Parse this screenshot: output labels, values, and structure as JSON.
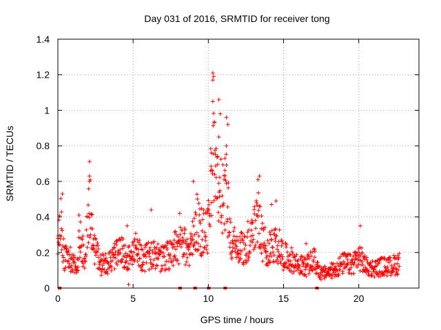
{
  "chart_data": {
    "type": "scatter",
    "title": "Day 031 of 2016, SRMTID for receiver tong",
    "xlabel": "GPS time / hours",
    "ylabel": "SRMTID / TECUs",
    "xlim": [
      0,
      24
    ],
    "ylim": [
      0,
      1.4
    ],
    "xticks": [
      0,
      5,
      10,
      15,
      20
    ],
    "xtick_labels": [
      "0",
      "5",
      "10",
      "15",
      "20"
    ],
    "yticks": [
      0,
      0.2,
      0.4,
      0.6,
      0.8,
      1.0,
      1.2,
      1.4
    ],
    "ytick_labels": [
      "0",
      "0.2",
      "0.4",
      "0.6",
      "0.8",
      "1",
      "1.2",
      "1.4"
    ],
    "grid": true,
    "marker": "plus",
    "color": "#ff0000",
    "series_name": "SRMTID",
    "data_gap_markers_x": [
      0.1,
      8.1,
      9.1,
      10.0,
      11.1,
      17.2
    ],
    "profile": [
      {
        "x": 0.0,
        "y": 0.28
      },
      {
        "x": 0.2,
        "y": 0.4
      },
      {
        "x": 0.4,
        "y": 0.17
      },
      {
        "x": 0.7,
        "y": 0.18
      },
      {
        "x": 1.0,
        "y": 0.14
      },
      {
        "x": 1.3,
        "y": 0.13
      },
      {
        "x": 1.5,
        "y": 0.3
      },
      {
        "x": 1.8,
        "y": 0.13
      },
      {
        "x": 2.1,
        "y": 0.5
      },
      {
        "x": 2.4,
        "y": 0.25
      },
      {
        "x": 2.8,
        "y": 0.13
      },
      {
        "x": 3.3,
        "y": 0.14
      },
      {
        "x": 3.8,
        "y": 0.18
      },
      {
        "x": 4.3,
        "y": 0.2
      },
      {
        "x": 4.7,
        "y": 0.16
      },
      {
        "x": 5.2,
        "y": 0.22
      },
      {
        "x": 5.7,
        "y": 0.16
      },
      {
        "x": 6.3,
        "y": 0.2
      },
      {
        "x": 6.8,
        "y": 0.16
      },
      {
        "x": 7.3,
        "y": 0.18
      },
      {
        "x": 7.8,
        "y": 0.22
      },
      {
        "x": 8.3,
        "y": 0.25
      },
      {
        "x": 8.8,
        "y": 0.2
      },
      {
        "x": 9.2,
        "y": 0.38
      },
      {
        "x": 9.6,
        "y": 0.3
      },
      {
        "x": 10.0,
        "y": 0.35
      },
      {
        "x": 10.3,
        "y": 0.75
      },
      {
        "x": 10.6,
        "y": 0.55
      },
      {
        "x": 10.9,
        "y": 0.5
      },
      {
        "x": 11.2,
        "y": 0.55
      },
      {
        "x": 11.6,
        "y": 0.25
      },
      {
        "x": 12.0,
        "y": 0.22
      },
      {
        "x": 12.5,
        "y": 0.25
      },
      {
        "x": 13.0,
        "y": 0.3
      },
      {
        "x": 13.3,
        "y": 0.45
      },
      {
        "x": 13.6,
        "y": 0.25
      },
      {
        "x": 14.1,
        "y": 0.22
      },
      {
        "x": 14.6,
        "y": 0.25
      },
      {
        "x": 15.0,
        "y": 0.18
      },
      {
        "x": 15.5,
        "y": 0.16
      },
      {
        "x": 16.0,
        "y": 0.13
      },
      {
        "x": 16.5,
        "y": 0.12
      },
      {
        "x": 17.0,
        "y": 0.16
      },
      {
        "x": 17.5,
        "y": 0.08
      },
      {
        "x": 18.0,
        "y": 0.09
      },
      {
        "x": 18.5,
        "y": 0.11
      },
      {
        "x": 19.0,
        "y": 0.14
      },
      {
        "x": 19.5,
        "y": 0.13
      },
      {
        "x": 20.0,
        "y": 0.18
      },
      {
        "x": 20.5,
        "y": 0.12
      },
      {
        "x": 21.0,
        "y": 0.11
      },
      {
        "x": 21.5,
        "y": 0.12
      },
      {
        "x": 22.0,
        "y": 0.12
      },
      {
        "x": 22.7,
        "y": 0.14
      }
    ],
    "outliers": [
      {
        "x": 10.3,
        "y": 1.21
      },
      {
        "x": 10.35,
        "y": 1.19
      },
      {
        "x": 10.3,
        "y": 1.17
      },
      {
        "x": 10.3,
        "y": 1.05
      },
      {
        "x": 10.7,
        "y": 1.06
      },
      {
        "x": 10.8,
        "y": 0.98
      },
      {
        "x": 10.4,
        "y": 0.93
      },
      {
        "x": 11.2,
        "y": 0.96
      },
      {
        "x": 11.3,
        "y": 0.92
      },
      {
        "x": 10.7,
        "y": 0.85
      },
      {
        "x": 11.2,
        "y": 0.8
      },
      {
        "x": 10.2,
        "y": 0.76
      },
      {
        "x": 11.1,
        "y": 0.73
      },
      {
        "x": 2.1,
        "y": 0.63
      },
      {
        "x": 2.1,
        "y": 0.6
      },
      {
        "x": 13.4,
        "y": 0.63
      },
      {
        "x": 13.3,
        "y": 0.61
      },
      {
        "x": 9.0,
        "y": 0.6
      },
      {
        "x": 0.3,
        "y": 0.53
      },
      {
        "x": 14.5,
        "y": 0.49
      },
      {
        "x": 14.2,
        "y": 0.47
      },
      {
        "x": 1.4,
        "y": 0.41
      },
      {
        "x": 8.1,
        "y": 0.42
      },
      {
        "x": 6.2,
        "y": 0.44
      },
      {
        "x": 4.6,
        "y": 0.35
      },
      {
        "x": 20.1,
        "y": 0.35
      },
      {
        "x": 16.5,
        "y": 0.25
      },
      {
        "x": 4.7,
        "y": 0.02
      },
      {
        "x": 0.0,
        "y": 0.28
      }
    ]
  }
}
